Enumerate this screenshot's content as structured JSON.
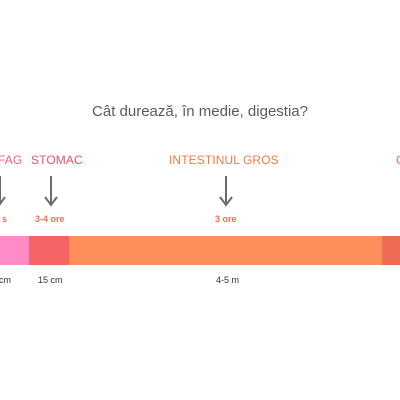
{
  "title": "Cât durează, în medie, digestia?",
  "segments": [
    {
      "label": "FAG",
      "time": "s",
      "length": "cm",
      "label_color": "#f05a8c",
      "bar_color": "#ff8cc6"
    },
    {
      "label": "STOMAC",
      "time": "3-4 ore",
      "length": "15 cm",
      "label_color": "#f0506a",
      "bar_color": "#f46465"
    },
    {
      "label": "INTESTINUL GROS",
      "time": "3 ore",
      "length": "4-5 m",
      "label_color": "#f07a45",
      "bar_color": "#fe8f5c"
    },
    {
      "label": "C",
      "time": "",
      "length": "",
      "label_color": "#ef6a42",
      "bar_color": "#f06b53"
    }
  ],
  "colors": {
    "arrow": "#6b6b6b",
    "time_text": "#ef6d52"
  },
  "icons": {
    "arrow": "arrow-down-icon"
  }
}
